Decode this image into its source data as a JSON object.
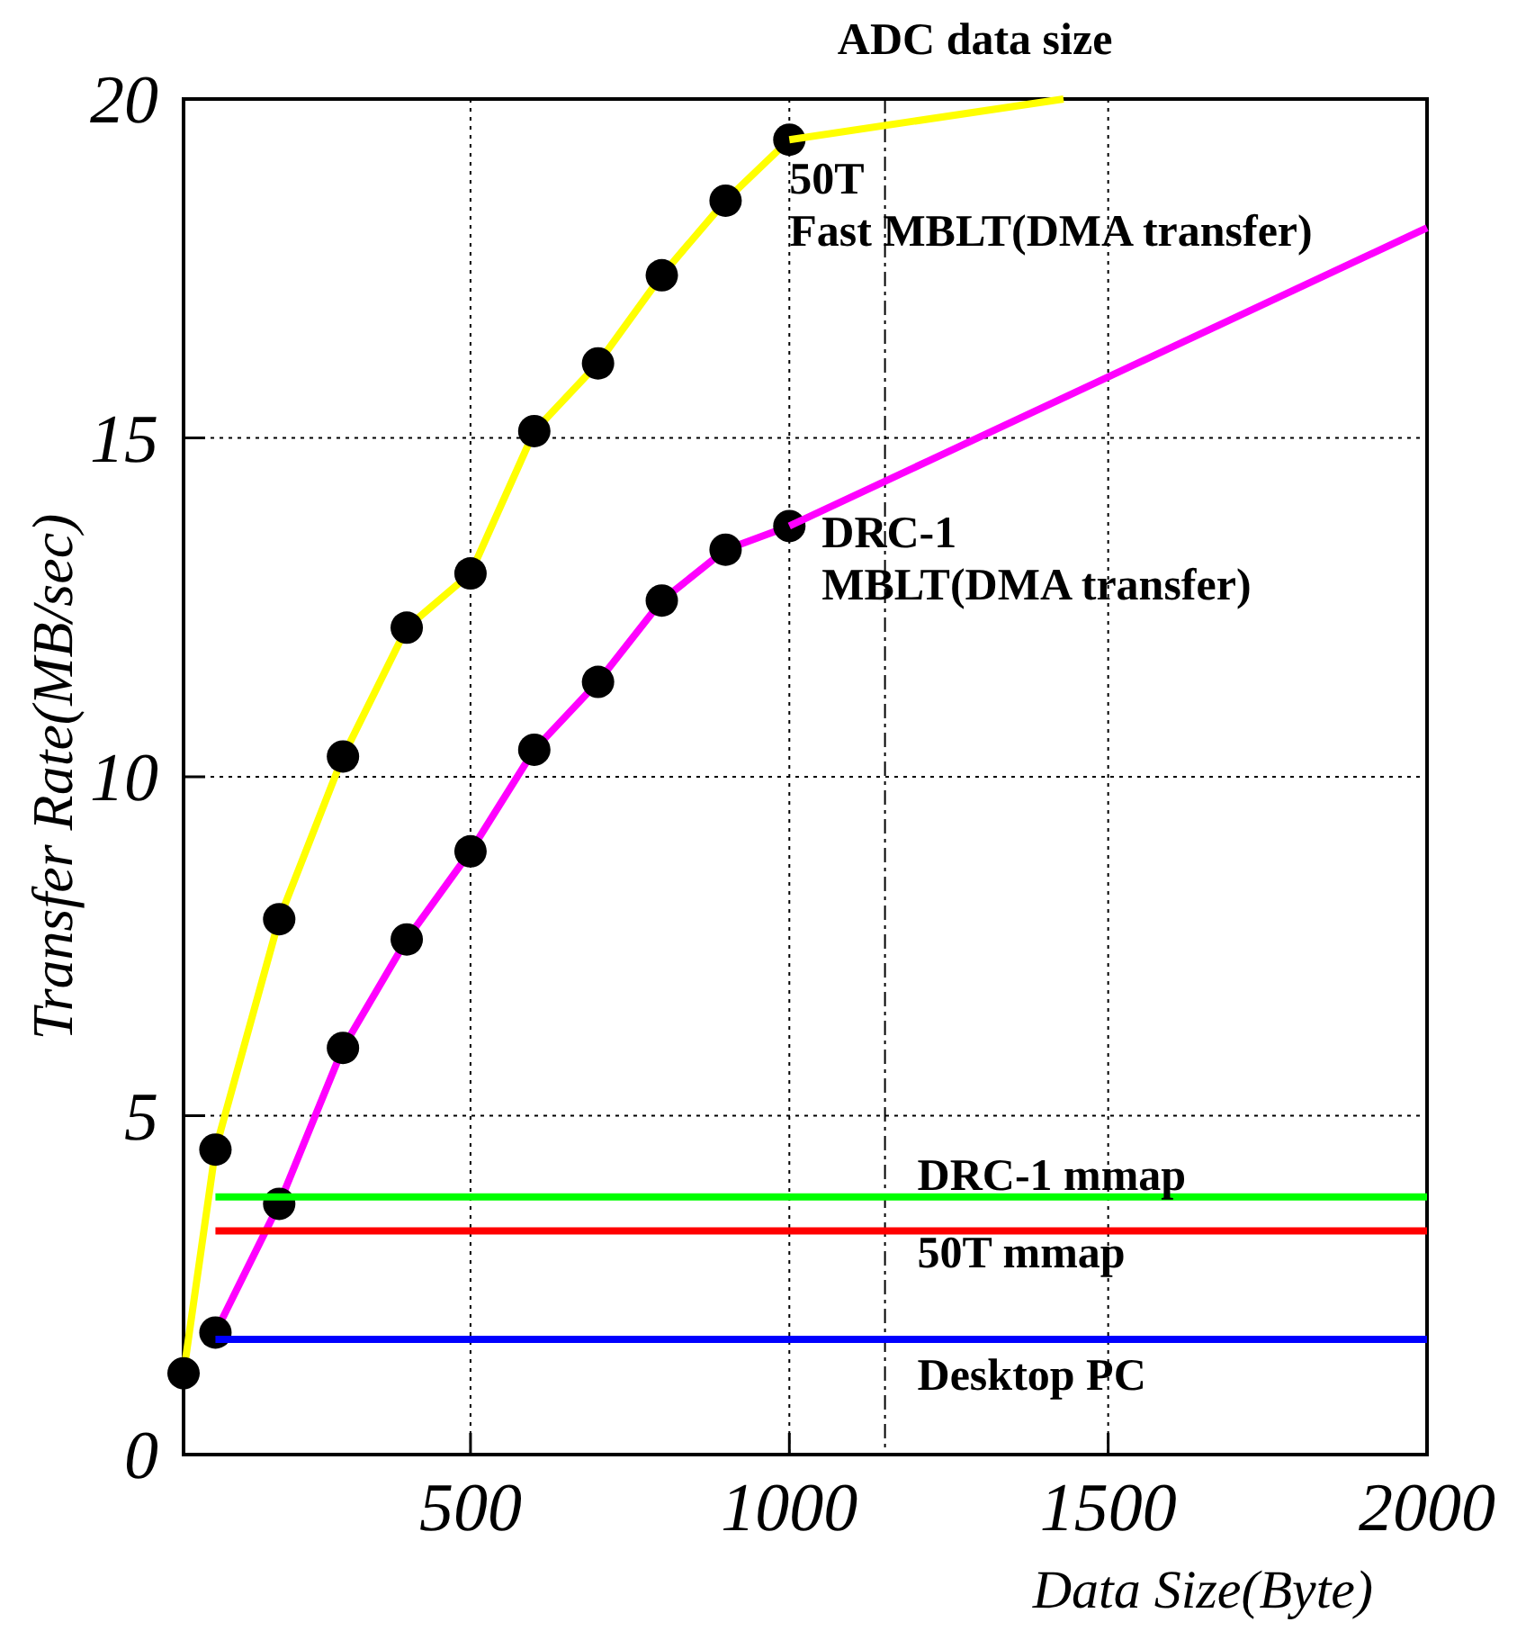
{
  "chart_data": {
    "type": "line",
    "xlabel": "Data Size(Byte)",
    "ylabel": "Transfer Rate(MB/sec)",
    "xlim": [
      50,
      2000
    ],
    "ylim": [
      0,
      20
    ],
    "xticks": [
      500,
      1000,
      1500,
      2000
    ],
    "yticks": [
      0,
      5,
      10,
      15,
      20
    ],
    "grid": true,
    "marker": "circle",
    "series": [
      {
        "name": "50T\nFast MBLT(DMA transfer)",
        "color": "#ffff00",
        "x": [
          50,
          100,
          200,
          300,
          400,
          500,
          600,
          700,
          800,
          900,
          1000
        ],
        "values": [
          1.2,
          4.5,
          7.9,
          10.3,
          12.2,
          13.0,
          15.1,
          16.1,
          17.4,
          18.5,
          19.4
        ]
      },
      {
        "color": "#ffff00",
        "marker": "none",
        "x": [
          1000,
          1430
        ],
        "values": [
          19.4,
          20
        ]
      },
      {
        "name": "DRC-1\nMBLT(DMA transfer)",
        "color": "#ff00ff",
        "x": [
          100,
          200,
          300,
          400,
          500,
          600,
          700,
          800,
          900,
          1000
        ],
        "values": [
          1.8,
          3.7,
          6.0,
          7.6,
          8.9,
          10.4,
          11.4,
          12.6,
          13.35,
          13.7
        ]
      },
      {
        "color": "#ff00ff",
        "marker": "none",
        "x": [
          1000,
          2000
        ],
        "values": [
          13.7,
          18.1
        ]
      },
      {
        "name": "DRC-1 mmap",
        "color": "#00ff00",
        "marker": "none",
        "x": [
          100,
          2000
        ],
        "values": [
          3.8,
          3.8
        ]
      },
      {
        "name": "50T mmap",
        "color": "#ff0000",
        "marker": "none",
        "x": [
          100,
          2000
        ],
        "values": [
          3.3,
          3.3
        ]
      },
      {
        "name": "Desktop PC",
        "color": "#0000ff",
        "marker": "none",
        "x": [
          100,
          2000
        ],
        "values": [
          1.7,
          1.7
        ]
      }
    ],
    "ref_lines": [
      {
        "axis": "x",
        "value": 1150,
        "label": "ADC data size",
        "color": "#000000",
        "line_style": "dashdot"
      }
    ]
  }
}
